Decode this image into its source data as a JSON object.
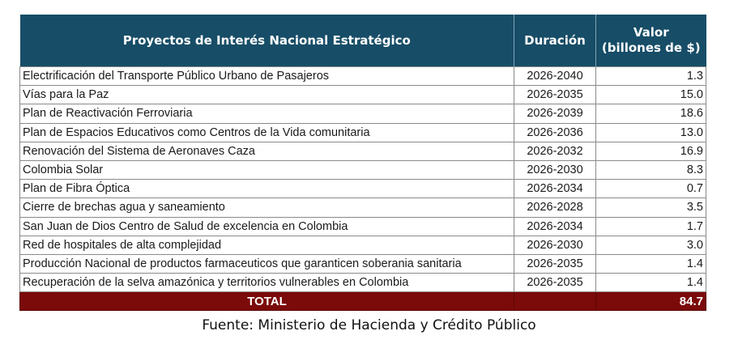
{
  "table": {
    "headers": [
      "Proyectos de Interés Nacional  Estratégico",
      "Duración",
      "Valor (billones de $)"
    ],
    "header_value_line1": "Valor",
    "header_value_line2": "(billones de $)",
    "rows": [
      {
        "name": "Electrificación del Transporte Público Urbano de Pasajeros",
        "duration": "2026-2040",
        "value": "1.3"
      },
      {
        "name": "Vías para la Paz",
        "duration": "2026-2035",
        "value": "15.0"
      },
      {
        "name": "Plan de Reactivación Ferroviaria",
        "duration": "2026-2039",
        "value": "18.6"
      },
      {
        "name": "Plan de Espacios Educativos como Centros de la Vida comunitaria",
        "duration": "2026-2036",
        "value": "13.0"
      },
      {
        "name": " Renovación del Sistema de Aeronaves Caza",
        "duration": "2026-2032",
        "value": "16.9"
      },
      {
        "name": " Colombia Solar",
        "duration": "2026-2030",
        "value": "8.3"
      },
      {
        "name": "Plan de Fibra Óptica",
        "duration": "2026-2034",
        "value": "0.7"
      },
      {
        "name": "Cierre de brechas agua y saneamiento",
        "duration": "2026-2028",
        "value": "3.5"
      },
      {
        "name": "San Juan de Dios Centro de Salud de excelencia en Colombia",
        "duration": "2026-2034",
        "value": "1.7"
      },
      {
        "name": "Red de hospitales de alta complejidad",
        "duration": "2026-2030",
        "value": "3.0"
      },
      {
        "name": "Producción Nacional de productos farmaceuticos que garanticen soberania sanitaria",
        "duration": "2026-2035",
        "value": "1.4"
      },
      {
        "name": "Recuperación de la selva amazónica y territorios vulnerables en Colombia",
        "duration": "2026-2035",
        "value": "1.4"
      }
    ],
    "total_label": "TOTAL",
    "total_value": "84.7"
  },
  "source": "Fuente: Ministerio de Hacienda y Crédito Público",
  "colors": {
    "header": "#174d67",
    "total": "#7b0a0a"
  }
}
